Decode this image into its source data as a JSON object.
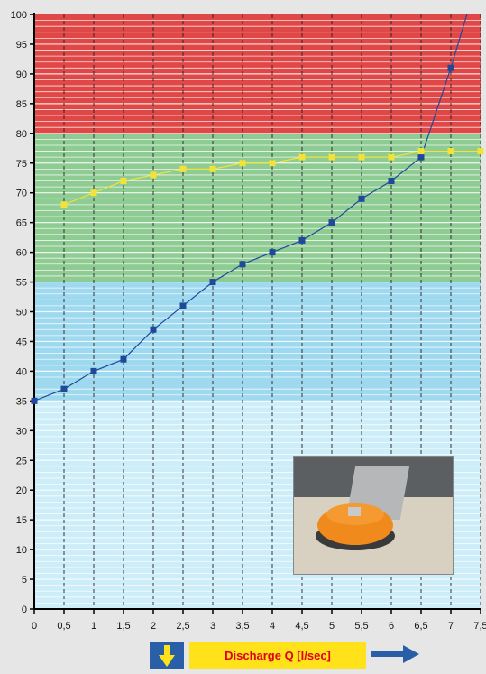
{
  "chart_data": {
    "type": "line",
    "title": "",
    "xlabel": "Discharge Q [l/sec]",
    "ylabel": "",
    "xlim": [
      0,
      7.5
    ],
    "ylim": [
      0,
      100
    ],
    "x_ticks": [
      "0",
      "0,5",
      "1",
      "1,5",
      "2",
      "2,5",
      "3",
      "3,5",
      "4",
      "4,5",
      "5",
      "5,5",
      "6",
      "6,5",
      "7",
      "7,5"
    ],
    "y_ticks": [
      "0",
      "5",
      "10",
      "15",
      "20",
      "25",
      "30",
      "35",
      "40",
      "45",
      "50",
      "55",
      "60",
      "65",
      "70",
      "75",
      "80",
      "85",
      "90",
      "95",
      "100"
    ],
    "grid": true,
    "zones": [
      {
        "from": 0,
        "to": 35,
        "color": "#cdeef8"
      },
      {
        "from": 35,
        "to": 55,
        "color": "#9fd9ef"
      },
      {
        "from": 55,
        "to": 80,
        "color": "#8fcc93"
      },
      {
        "from": 80,
        "to": 100,
        "color": "#e04747"
      }
    ],
    "series": [
      {
        "color": "#1f4a9c",
        "marker": "square",
        "x": [
          0,
          0.5,
          1,
          1.5,
          2,
          2.5,
          3,
          3.5,
          4,
          4.5,
          5,
          5.5,
          6,
          6.5,
          7,
          7.3
        ],
        "y": [
          35,
          37,
          40,
          42,
          47,
          51,
          55,
          58,
          60,
          62,
          65,
          69,
          72,
          76,
          91,
          101
        ]
      },
      {
        "color": "#f3e23a",
        "marker": "square",
        "x": [
          0.5,
          1,
          1.5,
          2,
          2.5,
          3,
          3.5,
          4,
          4.5,
          5,
          5.5,
          6,
          6.5,
          7,
          7.5
        ],
        "y": [
          68,
          70,
          72,
          73,
          74,
          74,
          75,
          75,
          76,
          76,
          76,
          76,
          77,
          77,
          77
        ]
      }
    ]
  },
  "footer": {
    "label": "Discharge Q [l/sec]",
    "colors": {
      "down_arrow_box": "#2a5fa8",
      "label_bg": "#ffe21a",
      "label_text": "#e0001b",
      "right_arrow": "#2a5fa8"
    }
  },
  "photo": {
    "subject": "orange-drain-fitting-photo"
  }
}
